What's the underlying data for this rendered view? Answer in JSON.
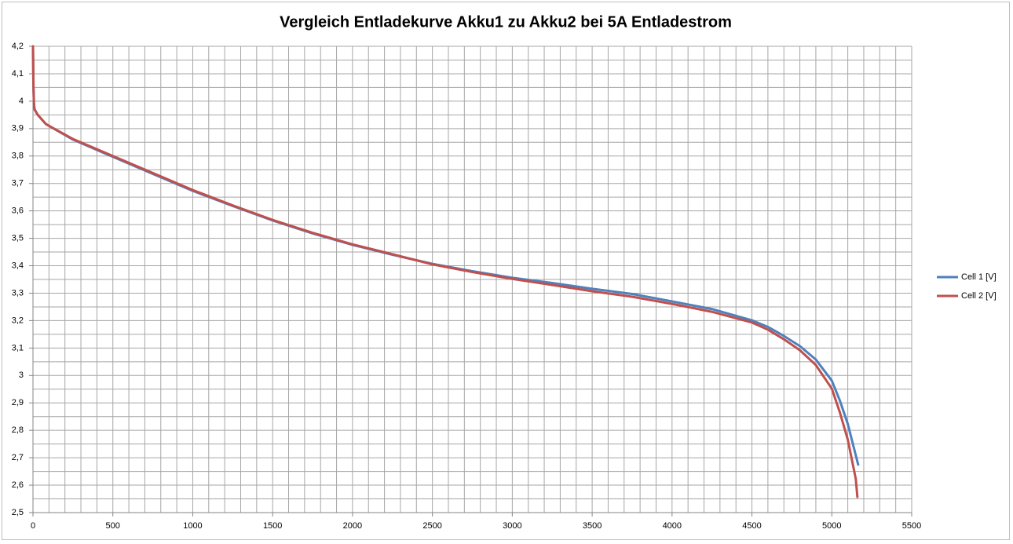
{
  "chart_data": {
    "type": "line",
    "title": "Vergleich Entladekurve Akku1 zu Akku2 bei 5A Entladestrom",
    "series": [
      {
        "name": "Cell 1 [V]",
        "color": "#4f81bd",
        "x": [
          0,
          3,
          6,
          10,
          30,
          80,
          100,
          250,
          500,
          750,
          1000,
          1250,
          1500,
          1750,
          2000,
          2250,
          2500,
          2750,
          3000,
          3250,
          3500,
          3750,
          4000,
          4250,
          4500,
          4600,
          4700,
          4800,
          4900,
          5000,
          5050,
          5100,
          5150,
          5165
        ],
        "values": [
          4.2,
          4.05,
          3.99,
          3.97,
          3.95,
          3.917,
          3.91,
          3.86,
          3.797,
          3.735,
          3.673,
          3.618,
          3.565,
          3.518,
          3.476,
          3.44,
          3.407,
          3.38,
          3.356,
          3.337,
          3.316,
          3.297,
          3.27,
          3.242,
          3.201,
          3.177,
          3.144,
          3.107,
          3.058,
          2.981,
          2.909,
          2.823,
          2.709,
          2.675
        ]
      },
      {
        "name": "Cell 2 [V]",
        "color": "#c0504d",
        "x": [
          0,
          3,
          6,
          10,
          30,
          80,
          100,
          250,
          500,
          750,
          1000,
          1250,
          1500,
          1750,
          2000,
          2250,
          2500,
          2750,
          3000,
          3250,
          3500,
          3750,
          4000,
          4250,
          4500,
          4600,
          4700,
          4800,
          4900,
          5000,
          5050,
          5100,
          5150,
          5160
        ],
        "values": [
          4.2,
          4.05,
          3.99,
          3.97,
          3.95,
          3.917,
          3.91,
          3.862,
          3.8,
          3.738,
          3.676,
          3.62,
          3.567,
          3.52,
          3.478,
          3.442,
          3.405,
          3.377,
          3.352,
          3.33,
          3.307,
          3.287,
          3.261,
          3.232,
          3.193,
          3.167,
          3.132,
          3.092,
          3.038,
          2.952,
          2.866,
          2.766,
          2.623,
          2.557
        ]
      }
    ],
    "xlim": [
      0,
      5500
    ],
    "xticks": [
      0,
      500,
      1000,
      1500,
      2000,
      2500,
      3000,
      3500,
      4000,
      4500,
      5000,
      5500
    ],
    "ylim": [
      2.5,
      4.2
    ],
    "yticks": [
      {
        "value": 2.5,
        "label": "2,5"
      },
      {
        "value": 2.6,
        "label": "2,6"
      },
      {
        "value": 2.7,
        "label": "2,7"
      },
      {
        "value": 2.8,
        "label": "2,8"
      },
      {
        "value": 2.9,
        "label": "2,9"
      },
      3,
      {
        "value": 3.1,
        "label": "3,1"
      },
      {
        "value": 3.2,
        "label": "3,2"
      },
      {
        "value": 3.3,
        "label": "3,3"
      },
      {
        "value": 3.4,
        "label": "3,4"
      },
      {
        "value": 3.5,
        "label": "3,5"
      },
      {
        "value": 3.6,
        "label": "3,6"
      },
      {
        "value": 3.7,
        "label": "3,7"
      },
      {
        "value": 3.8,
        "label": "3,8"
      },
      {
        "value": 3.9,
        "label": "3,9"
      },
      4,
      {
        "value": 4.1,
        "label": "4,1"
      },
      {
        "value": 4.2,
        "label": "4,2"
      }
    ],
    "xgrid": [
      0,
      100,
      200,
      300,
      400,
      500,
      600,
      700,
      800,
      900,
      1000,
      1100,
      1200,
      1300,
      1400,
      1500,
      1600,
      1700,
      1800,
      1900,
      2000,
      2100,
      2200,
      2300,
      2400,
      2500,
      2600,
      2700,
      2800,
      2900,
      3000,
      3100,
      3200,
      3300,
      3400,
      3500,
      3600,
      3700,
      3800,
      3900,
      4000,
      4100,
      4200,
      4300,
      4400,
      4500,
      4600,
      4700,
      4800,
      4900,
      5000,
      5100,
      5200,
      5300,
      5400,
      5500
    ],
    "ygrid": [
      2.5,
      2.55,
      2.6,
      2.65,
      2.7,
      2.75,
      2.8,
      2.85,
      2.9,
      2.95,
      3,
      3.05,
      3.1,
      3.15,
      3.2,
      3.25,
      3.3,
      3.35,
      3.4,
      3.45,
      3.5,
      3.55,
      3.6,
      3.65,
      3.7,
      3.75,
      3.8,
      3.85,
      3.9,
      3.95,
      4,
      4.05,
      4.1,
      4.15,
      4.2
    ],
    "grid": true,
    "legend": "right"
  }
}
